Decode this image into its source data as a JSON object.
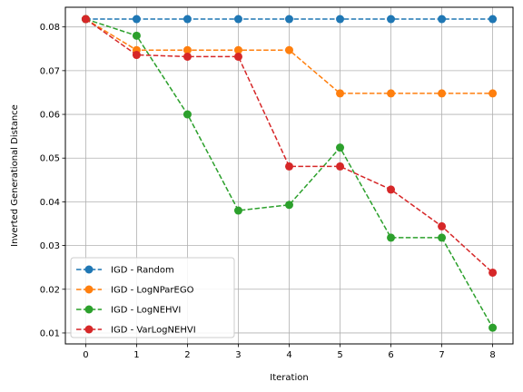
{
  "chart_data": {
    "type": "line",
    "title": "",
    "xlabel": "Iteration",
    "ylabel": "Inverted Generational Distance",
    "x": [
      0,
      1,
      2,
      3,
      4,
      5,
      6,
      7,
      8
    ],
    "xlim": [
      -0.4,
      8.4
    ],
    "ylim": [
      0.0075,
      0.0845
    ],
    "xticks": [
      0,
      1,
      2,
      3,
      4,
      5,
      6,
      7,
      8
    ],
    "yticks": [
      0.01,
      0.02,
      0.03,
      0.04,
      0.05,
      0.06,
      0.07,
      0.08
    ],
    "ytick_labels": [
      "0.01",
      "0.02",
      "0.03",
      "0.04",
      "0.05",
      "0.06",
      "0.07",
      "0.08"
    ],
    "grid": true,
    "legend_position": "lower-left",
    "line_style": "dashed",
    "marker": "circle",
    "series": [
      {
        "name": "IGD - Random",
        "color": "#1f77b4",
        "values": [
          0.0818,
          0.0818,
          0.0818,
          0.0818,
          0.0818,
          0.0818,
          0.0818,
          0.0818,
          0.0818
        ]
      },
      {
        "name": "IGD - LogNParEGO",
        "color": "#ff7f0e",
        "values": [
          0.0818,
          0.0747,
          0.0747,
          0.0747,
          0.0747,
          0.0648,
          0.0648,
          0.0648,
          0.0648
        ]
      },
      {
        "name": "IGD - LogNEHVI",
        "color": "#2ca02c",
        "values": [
          0.0818,
          0.078,
          0.06,
          0.038,
          0.0393,
          0.0524,
          0.0318,
          0.0318,
          0.0112
        ]
      },
      {
        "name": "IGD - VarLogNEHVI",
        "color": "#d62728",
        "values": [
          0.0818,
          0.0736,
          0.0732,
          0.0732,
          0.0481,
          0.0481,
          0.0428,
          0.0344,
          0.0238
        ]
      }
    ]
  }
}
